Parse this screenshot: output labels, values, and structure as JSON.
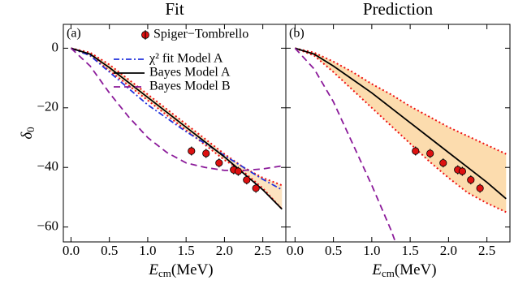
{
  "chart_data": [
    {
      "type": "line",
      "title": "Fit",
      "panel_label": "(a)",
      "xlabel": {
        "main": "E",
        "sub": "cm",
        "unit": "(MeV)"
      },
      "ylabel": {
        "main": "δ",
        "sub": "0"
      },
      "xlim": [
        -0.1,
        2.8
      ],
      "ylim": [
        -65,
        8
      ],
      "xticks": [
        {
          "value": 0,
          "label": "0.0"
        },
        0.5,
        {
          "value": 1,
          "label": "1.0"
        },
        1.5,
        {
          "value": 2,
          "label": "2.0"
        },
        2.5
      ],
      "yticks": [
        0,
        -20,
        -40,
        -60
      ],
      "show_ytick_labels": true,
      "x": [
        0,
        0.25,
        0.5,
        0.75,
        1.0,
        1.25,
        1.5,
        1.75,
        2.0,
        2.25,
        2.5,
        2.75
      ],
      "band": {
        "color": "#ee1111",
        "fill": "#fce3c0",
        "upper": [
          0,
          -1.5,
          -5.5,
          -10.5,
          -15.5,
          -20.5,
          -25.5,
          -30.5,
          -35.5,
          -40,
          -43.5,
          -46
        ],
        "lower": [
          0,
          -2.5,
          -7.5,
          -12.5,
          -17.5,
          -22.5,
          -27.5,
          -32.5,
          -37.5,
          -41.5,
          -47,
          -54
        ]
      },
      "series": [
        {
          "name": "χ² fit Model A",
          "color": "#2233dd",
          "dash": "dashdot",
          "values": [
            0,
            -2.5,
            -8,
            -13.5,
            -19,
            -23.5,
            -28,
            -32,
            -36,
            -40,
            -44,
            -47.5
          ]
        },
        {
          "name": "Bayes Model A",
          "color": "#000000",
          "dash": "solid",
          "values": [
            0,
            -2,
            -6.5,
            -11.5,
            -16.5,
            -21.5,
            -26.5,
            -31.5,
            -36.5,
            -42,
            -47.5,
            -54
          ]
        },
        {
          "name": "Bayes Model B",
          "color": "#8b1a9a",
          "dash": "dashed",
          "values": [
            0,
            -6,
            -15,
            -23,
            -30,
            -35,
            -38.5,
            -40,
            -41,
            -41,
            -40.5,
            -39.5
          ]
        }
      ],
      "points": {
        "name": "Spiger−Tombrello",
        "color": "#dd1111",
        "x": [
          1.57,
          1.76,
          1.93,
          2.12,
          2.18,
          2.29,
          2.41
        ],
        "values": [
          -34.5,
          -35.3,
          -38.5,
          -40.8,
          -41.3,
          -44.2,
          -47
        ],
        "errors": [
          1.5,
          1.5,
          1.5,
          1.5,
          1.5,
          1.5,
          1.5
        ]
      }
    },
    {
      "type": "line",
      "title": "Prediction",
      "panel_label": "(b)",
      "xlabel": {
        "main": "E",
        "sub": "cm",
        "unit": "(MeV)"
      },
      "xlim": [
        -0.12,
        2.8
      ],
      "ylim": [
        -65,
        8
      ],
      "xticks": [
        {
          "value": 0,
          "label": "0.0"
        },
        0.5,
        {
          "value": 1,
          "label": "1.0"
        },
        1.5,
        {
          "value": 2,
          "label": "2.0"
        },
        2.5
      ],
      "yticks": [
        0,
        -20,
        -40,
        -60
      ],
      "show_ytick_labels": false,
      "x": [
        0,
        0.25,
        0.5,
        0.75,
        1.0,
        1.25,
        1.5,
        1.75,
        2.0,
        2.25,
        2.5,
        2.75
      ],
      "band": {
        "color": "#ee1111",
        "fill": "#fcdcae",
        "upper": [
          0,
          -1.5,
          -4.5,
          -8,
          -12,
          -15.5,
          -19.5,
          -23,
          -26.5,
          -29.5,
          -32.5,
          -35.5
        ],
        "lower": [
          0,
          -2.5,
          -8,
          -14,
          -20,
          -26,
          -32,
          -38,
          -43.5,
          -48.5,
          -52,
          -55
        ]
      },
      "series": [
        {
          "color": "#000000",
          "dash": "solid",
          "values": [
            0,
            -2,
            -6,
            -10.5,
            -15,
            -20,
            -25,
            -30,
            -35,
            -40,
            -45,
            -50.5
          ]
        },
        {
          "color": "#8b1a9a",
          "dash": "dashed",
          "x": [
            0,
            0.25,
            0.5,
            0.75,
            1.0,
            1.25,
            1.35
          ],
          "values": [
            0,
            -7,
            -18,
            -32,
            -46,
            -61,
            -68
          ]
        }
      ],
      "points": {
        "color": "#dd1111",
        "x": [
          1.57,
          1.76,
          1.93,
          2.12,
          2.18,
          2.29,
          2.41
        ],
        "values": [
          -34.5,
          -35.3,
          -38.5,
          -40.8,
          -41.3,
          -44.2,
          -47
        ],
        "errors": [
          1.5,
          1.5,
          1.5,
          1.5,
          1.5,
          1.5,
          1.5
        ]
      }
    }
  ]
}
